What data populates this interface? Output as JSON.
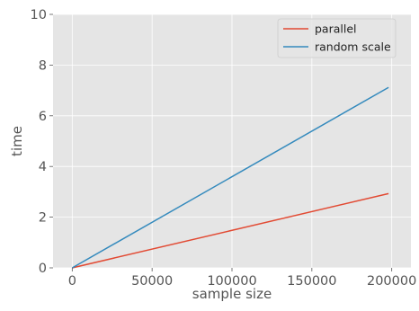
{
  "chart_data": {
    "type": "line",
    "xlabel": "sample size",
    "ylabel": "time",
    "xlim": [
      -12000,
      212000
    ],
    "ylim": [
      0,
      10
    ],
    "xticks": [
      0,
      50000,
      100000,
      150000,
      200000
    ],
    "yticks": [
      0,
      2,
      4,
      6,
      8,
      10
    ],
    "grid": true,
    "legend_position": "top-right",
    "series": [
      {
        "name": "parallel",
        "color": "#E24A33",
        "x": [
          0,
          198000
        ],
        "y": [
          0,
          2.93
        ]
      },
      {
        "name": "random scale",
        "color": "#348ABD",
        "x": [
          0,
          198000
        ],
        "y": [
          0,
          7.12
        ]
      }
    ]
  }
}
